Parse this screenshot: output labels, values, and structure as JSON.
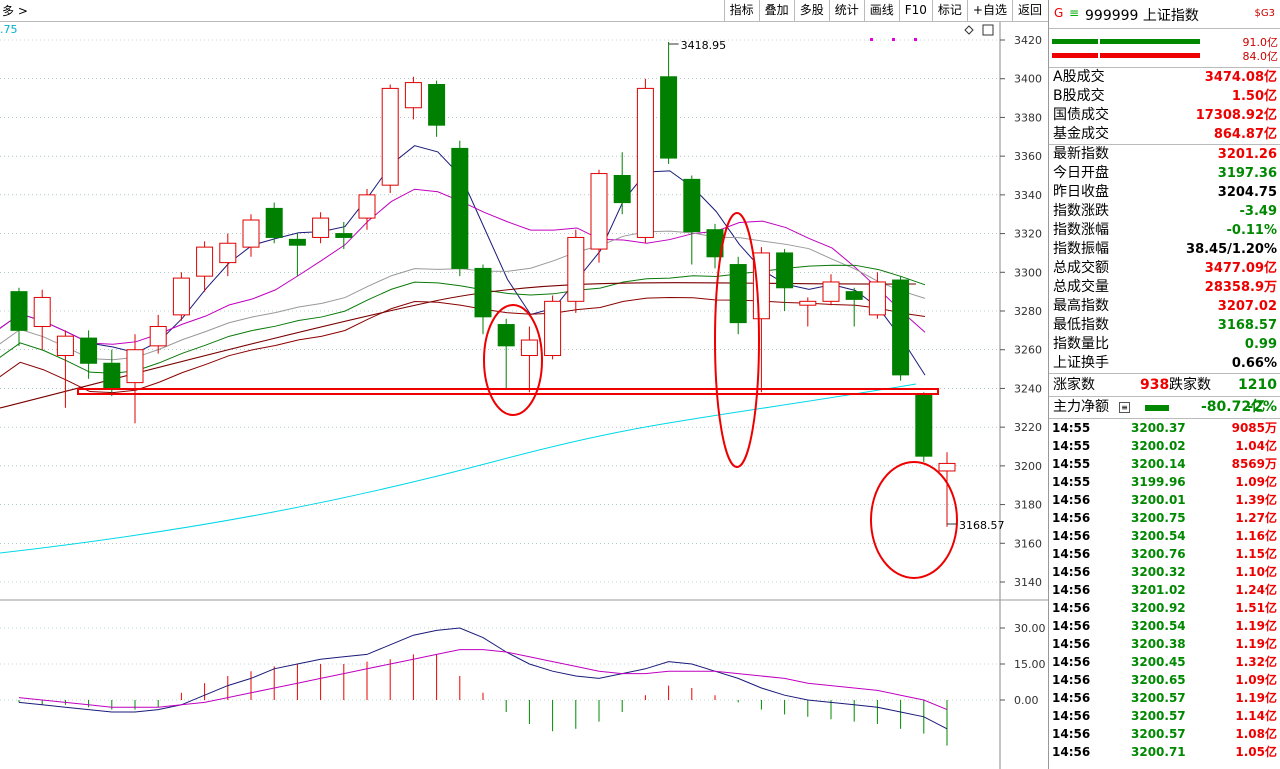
{
  "toolbar": {
    "crumb": "多 >",
    "buttons": [
      "指标",
      "叠加",
      "多股",
      "统计",
      "画线",
      "F10",
      "标记",
      "+自选",
      "返回"
    ]
  },
  "chart_labels": {
    "ma_fragment": ".75",
    "high_label": "3418.95",
    "low_label": "3168.57",
    "y_ticks_main": [
      "3420",
      "3400",
      "3380",
      "3360",
      "3340",
      "3320",
      "3300",
      "3280",
      "3260",
      "3240",
      "3220",
      "3200",
      "3180",
      "3160",
      "3140"
    ],
    "y_ticks_sub": [
      "30.00",
      "15.00",
      "0.00"
    ]
  },
  "chart_data": {
    "type": "candlestick",
    "ylim": [
      3133,
      3425
    ],
    "candles": [
      {
        "o": 3290,
        "c": 3270,
        "h": 3292,
        "l": 3262
      },
      {
        "o": 3272,
        "c": 3287,
        "h": 3291,
        "l": 3260
      },
      {
        "o": 3257,
        "c": 3267,
        "h": 3270,
        "l": 3230
      },
      {
        "o": 3266,
        "c": 3253,
        "h": 3270,
        "l": 3245
      },
      {
        "o": 3253,
        "c": 3240,
        "h": 3260,
        "l": 3236
      },
      {
        "o": 3243,
        "c": 3260,
        "h": 3268,
        "l": 3222
      },
      {
        "o": 3262,
        "c": 3272,
        "h": 3278,
        "l": 3258
      },
      {
        "o": 3278,
        "c": 3297,
        "h": 3300,
        "l": 3275
      },
      {
        "o": 3298,
        "c": 3313,
        "h": 3316,
        "l": 3290
      },
      {
        "o": 3305,
        "c": 3315,
        "h": 3320,
        "l": 3298
      },
      {
        "o": 3313,
        "c": 3327,
        "h": 3330,
        "l": 3308
      },
      {
        "o": 3333,
        "c": 3318,
        "h": 3336,
        "l": 3315
      },
      {
        "o": 3317,
        "c": 3314,
        "h": 3320,
        "l": 3298
      },
      {
        "o": 3318,
        "c": 3328,
        "h": 3331,
        "l": 3315
      },
      {
        "o": 3320,
        "c": 3318,
        "h": 3326,
        "l": 3312
      },
      {
        "o": 3328,
        "c": 3340,
        "h": 3343,
        "l": 3322
      },
      {
        "o": 3345,
        "c": 3395,
        "h": 3397,
        "l": 3341
      },
      {
        "o": 3385,
        "c": 3398,
        "h": 3401,
        "l": 3379
      },
      {
        "o": 3397,
        "c": 3376,
        "h": 3399,
        "l": 3370
      },
      {
        "o": 3364,
        "c": 3302,
        "h": 3368,
        "l": 3298
      },
      {
        "o": 3302,
        "c": 3277,
        "h": 3304,
        "l": 3268
      },
      {
        "o": 3273,
        "c": 3262,
        "h": 3276,
        "l": 3240
      },
      {
        "o": 3257,
        "c": 3265,
        "h": 3272,
        "l": 3238
      },
      {
        "o": 3257,
        "c": 3285,
        "h": 3288,
        "l": 3255
      },
      {
        "o": 3285,
        "c": 3318,
        "h": 3322,
        "l": 3279
      },
      {
        "o": 3312,
        "c": 3351,
        "h": 3353,
        "l": 3305
      },
      {
        "o": 3350,
        "c": 3336,
        "h": 3362,
        "l": 3330
      },
      {
        "o": 3318,
        "c": 3395,
        "h": 3400,
        "l": 3315
      },
      {
        "o": 3401,
        "c": 3359,
        "h": 3419,
        "l": 3356
      },
      {
        "o": 3348,
        "c": 3321,
        "h": 3350,
        "l": 3304
      },
      {
        "o": 3322,
        "c": 3308,
        "h": 3325,
        "l": 3302
      },
      {
        "o": 3304,
        "c": 3274,
        "h": 3308,
        "l": 3268
      },
      {
        "o": 3276,
        "c": 3310,
        "h": 3313,
        "l": 3238
      },
      {
        "o": 3310,
        "c": 3292,
        "h": 3312,
        "l": 3280
      },
      {
        "o": 3283,
        "c": 3285,
        "h": 3287,
        "l": 3272
      },
      {
        "o": 3285,
        "c": 3295,
        "h": 3299,
        "l": 3283
      },
      {
        "o": 3290,
        "c": 3286,
        "h": 3292,
        "l": 3272
      },
      {
        "o": 3278,
        "c": 3295,
        "h": 3300,
        "l": 3276
      },
      {
        "o": 3296,
        "c": 3247,
        "h": 3298,
        "l": 3244
      },
      {
        "o": 3237,
        "c": 3205,
        "h": 3238,
        "l": 3202
      },
      {
        "o": 3197.36,
        "c": 3201.26,
        "h": 3207.02,
        "l": 3168.57
      }
    ],
    "macd_hist": [
      -1,
      -2,
      -2,
      -3,
      -4,
      -4,
      -3,
      3,
      7,
      10,
      12,
      14,
      15,
      15,
      15,
      16,
      17,
      19,
      19,
      10,
      3,
      -5,
      -10,
      -13,
      -12,
      -9,
      -5,
      2,
      6,
      5,
      2,
      -1,
      -4,
      -6,
      -7,
      -8,
      -9,
      -10,
      -12,
      -14,
      -19
    ],
    "dif": [
      -1,
      -2,
      -3,
      -4,
      -5,
      -5,
      -4,
      -2,
      2,
      6,
      9,
      13,
      15,
      17,
      18,
      19,
      23,
      27,
      29,
      30,
      26,
      20,
      15,
      12,
      10,
      9,
      11,
      13,
      16,
      15,
      12,
      9,
      5,
      2,
      0,
      -1,
      -2,
      -3,
      -5,
      -7,
      -12
    ],
    "dea": [
      1,
      0,
      -1,
      -2,
      -3,
      -3,
      -3,
      -2,
      -1,
      1,
      3,
      5,
      7,
      9,
      11,
      13,
      15,
      17,
      19,
      21,
      21,
      20,
      18,
      16,
      14,
      12,
      11,
      11,
      12,
      12,
      12,
      11,
      10,
      9,
      7,
      6,
      5,
      4,
      2,
      0,
      -4
    ]
  },
  "sidebar": {
    "g": "G",
    "eq": "≡",
    "code_name": "999999 上证指数",
    "sg": "$G3",
    "buy_vol": "91.0亿",
    "sell_vol": "84.0亿",
    "turnover_rows": [
      {
        "label": "A股成交",
        "value": "3474.08亿"
      },
      {
        "label": "B股成交",
        "value": "1.50亿"
      },
      {
        "label": "国债成交",
        "value": "17308.92亿"
      },
      {
        "label": "基金成交",
        "value": "864.87亿"
      }
    ],
    "stat_rows": [
      {
        "label": "最新指数",
        "value": "3201.26",
        "color": "red"
      },
      {
        "label": "今日开盘",
        "value": "3197.36",
        "color": "green"
      },
      {
        "label": "昨日收盘",
        "value": "3204.75",
        "color": "blk"
      },
      {
        "label": "指数涨跌",
        "value": "-3.49",
        "color": "green"
      },
      {
        "label": "指数涨幅",
        "value": "-0.11%",
        "color": "green"
      },
      {
        "label": "指数振幅",
        "value": "38.45/1.20%",
        "color": "blk"
      },
      {
        "label": "总成交额",
        "value": "3477.09亿",
        "color": "red"
      },
      {
        "label": "总成交量",
        "value": "28358.9万",
        "color": "red"
      },
      {
        "label": "最高指数",
        "value": "3207.02",
        "color": "red"
      },
      {
        "label": "最低指数",
        "value": "3168.57",
        "color": "green"
      },
      {
        "label": "指数量比",
        "value": "0.99",
        "color": "green"
      },
      {
        "label": "上证换手",
        "value": "0.66%",
        "color": "blk"
      }
    ],
    "updown": {
      "up_label": "涨家数",
      "up_value": "938",
      "down_label": "跌家数",
      "down_value": "1210"
    },
    "flow": {
      "label": "主力净额",
      "value": "-80.72亿",
      "pct": "-2%"
    },
    "ticks": [
      {
        "t": "14:55",
        "p": "3200.37",
        "v": "9085万"
      },
      {
        "t": "14:55",
        "p": "3200.02",
        "v": "1.04亿"
      },
      {
        "t": "14:55",
        "p": "3200.14",
        "v": "8569万"
      },
      {
        "t": "14:55",
        "p": "3199.96",
        "v": "1.09亿"
      },
      {
        "t": "14:56",
        "p": "3200.01",
        "v": "1.39亿"
      },
      {
        "t": "14:56",
        "p": "3200.75",
        "v": "1.27亿"
      },
      {
        "t": "14:56",
        "p": "3200.54",
        "v": "1.16亿"
      },
      {
        "t": "14:56",
        "p": "3200.76",
        "v": "1.15亿"
      },
      {
        "t": "14:56",
        "p": "3200.32",
        "v": "1.10亿"
      },
      {
        "t": "14:56",
        "p": "3201.02",
        "v": "1.24亿"
      },
      {
        "t": "14:56",
        "p": "3200.92",
        "v": "1.51亿"
      },
      {
        "t": "14:56",
        "p": "3200.54",
        "v": "1.19亿"
      },
      {
        "t": "14:56",
        "p": "3200.38",
        "v": "1.19亿"
      },
      {
        "t": "14:56",
        "p": "3200.45",
        "v": "1.32亿"
      },
      {
        "t": "14:56",
        "p": "3200.65",
        "v": "1.09亿"
      },
      {
        "t": "14:56",
        "p": "3200.57",
        "v": "1.19亿"
      },
      {
        "t": "14:56",
        "p": "3200.57",
        "v": "1.14亿"
      },
      {
        "t": "14:56",
        "p": "3200.57",
        "v": "1.08亿"
      },
      {
        "t": "14:56",
        "p": "3200.71",
        "v": "1.05亿"
      }
    ]
  }
}
